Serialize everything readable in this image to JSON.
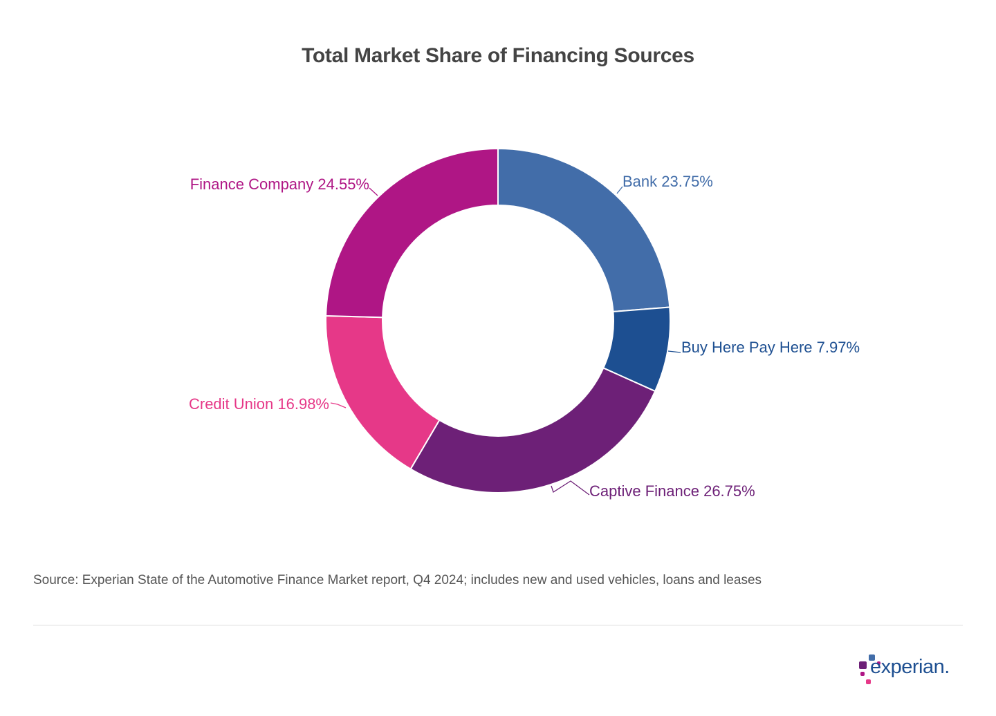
{
  "chart_data": {
    "type": "pie",
    "variant": "donut",
    "title": "Total Market Share of Financing Sources",
    "unit": "%",
    "slices": [
      {
        "label": "Bank",
        "value": 23.75,
        "color": "#426DA9"
      },
      {
        "label": "Buy Here Pay Here",
        "value": 7.97,
        "color": "#1D4F91"
      },
      {
        "label": "Captive Finance",
        "value": 26.75,
        "color": "#6D2077"
      },
      {
        "label": "Credit Union",
        "value": 16.98,
        "color": "#E63888"
      },
      {
        "label": "Finance Company",
        "value": 24.55,
        "color": "#AF1685"
      }
    ],
    "start_angle": "top, clockwise"
  },
  "source": "Source: Experian State of the Automotive Finance Market report, Q4 2024; includes new and used vehicles, loans and leases",
  "logo": {
    "text": "experian."
  }
}
